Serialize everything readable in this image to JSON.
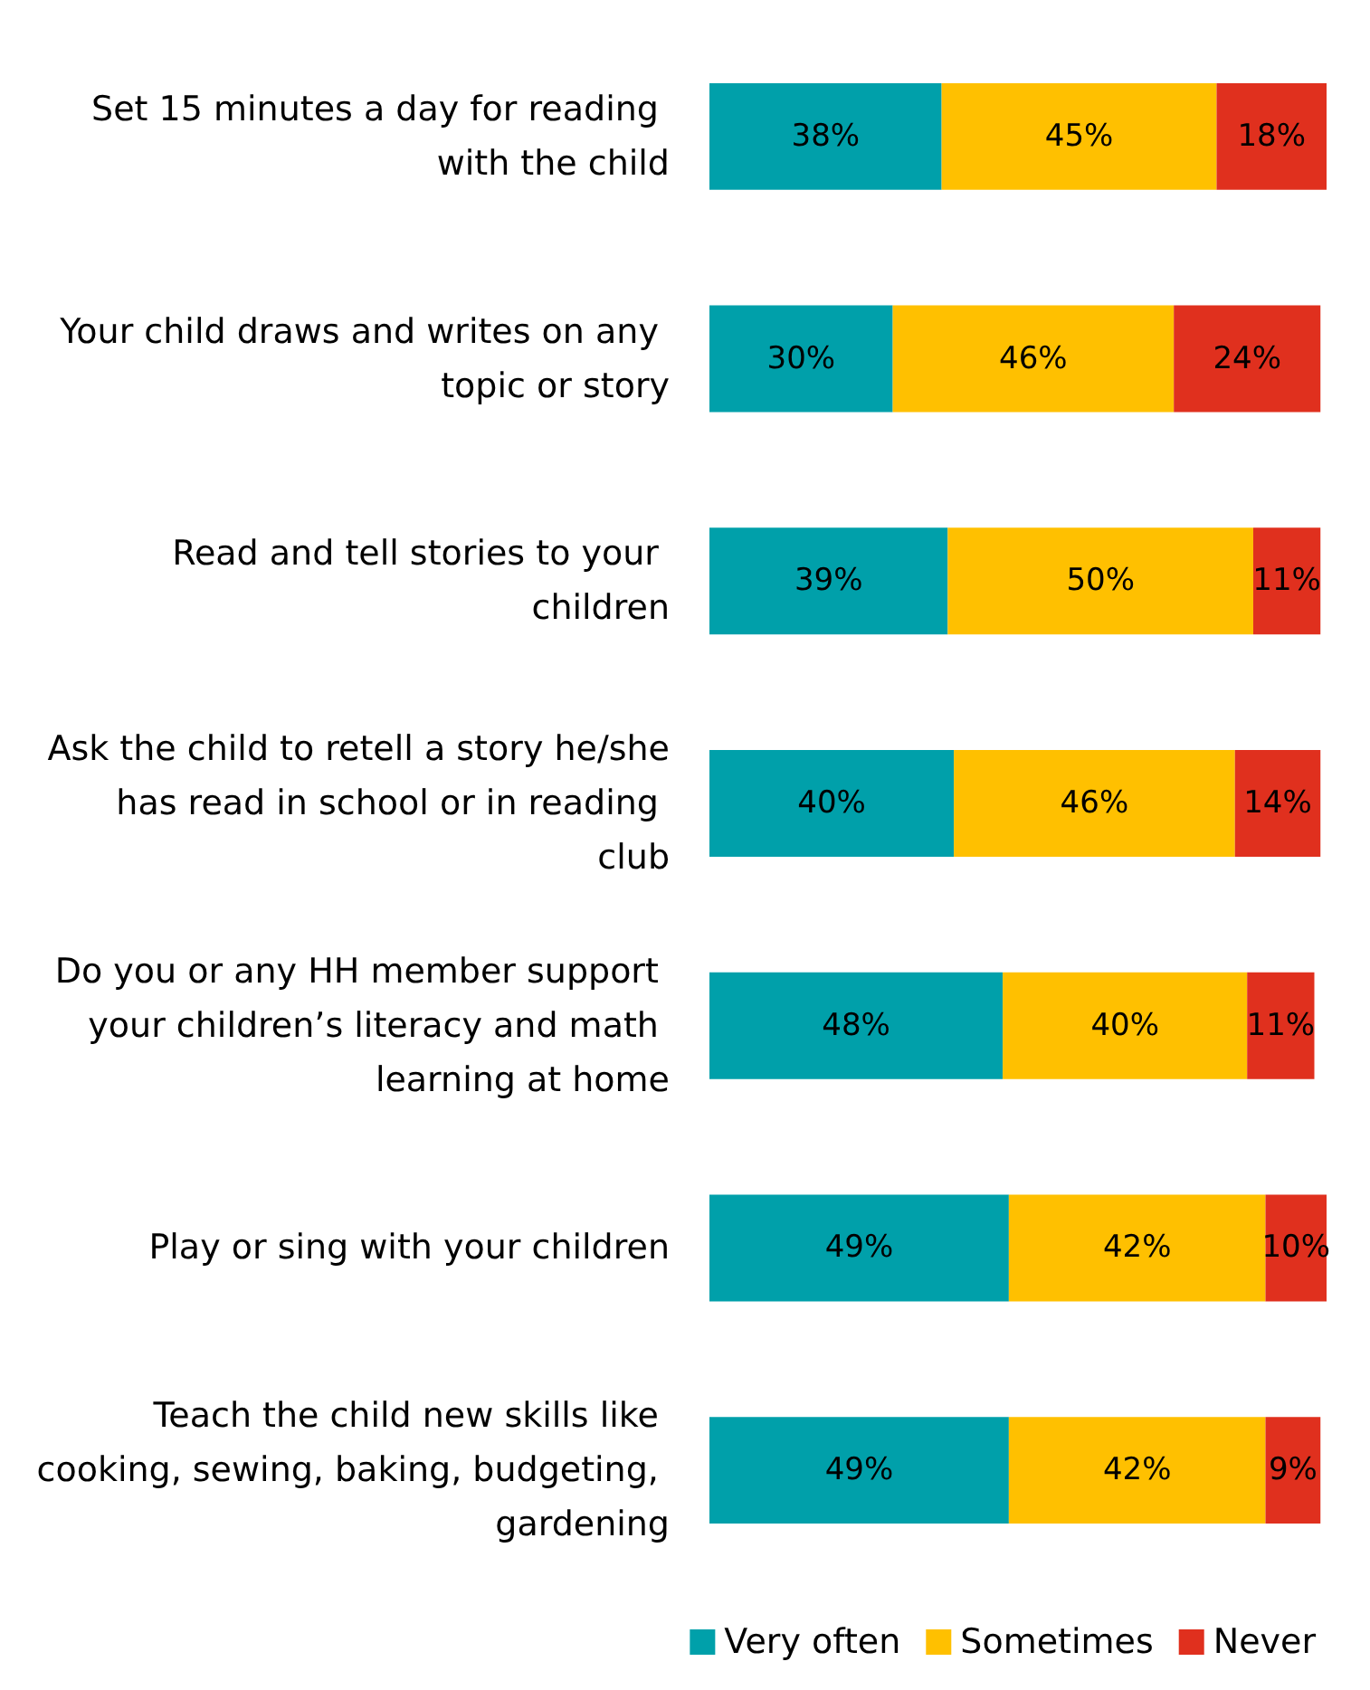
{
  "chart_data": {
    "type": "bar",
    "orientation": "horizontal",
    "stacked": true,
    "legend": "bottom right",
    "categories": [
      "Set 15 minutes a day for reading with the child",
      "Your child draws and writes on any topic or story",
      "Read and tell stories to your children",
      "Ask the child to retell a story he/she has read in school or in reading club",
      "Do you or any HH member support your children’s literacy and math learning at home",
      "Play or sing with your children",
      "Teach the child new skills like cooking, sewing, baking, budgeting, gardening"
    ],
    "series": [
      {
        "name": "Very often",
        "color": "#00a0aa",
        "values": [
          38,
          30,
          39,
          40,
          48,
          49,
          49
        ],
        "value_labels": [
          "38%",
          "30%",
          "39%",
          "40%",
          "48%",
          "49%",
          "49%"
        ]
      },
      {
        "name": "Sometimes",
        "color": "#ffc000",
        "values": [
          45,
          46,
          50,
          46,
          40,
          42,
          42
        ],
        "value_labels": [
          "45%",
          "46%",
          "50%",
          "46%",
          "40%",
          "42%",
          "42%"
        ]
      },
      {
        "name": "Never",
        "color": "#e0301e",
        "values": [
          18,
          24,
          11,
          14,
          11,
          10,
          9
        ],
        "value_labels": [
          "18%",
          "24%",
          "11%",
          "14%",
          "11%",
          "10%",
          "9%"
        ]
      }
    ]
  }
}
